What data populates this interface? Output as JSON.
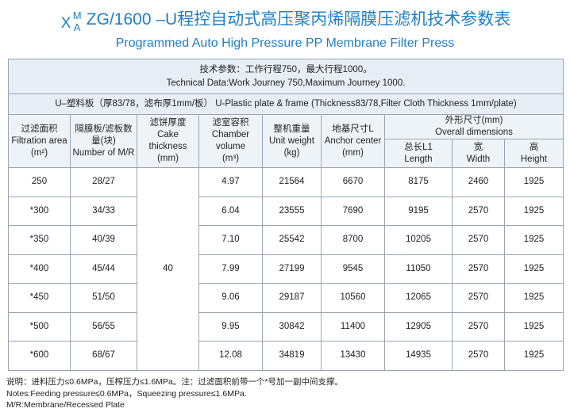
{
  "title": {
    "code_x": "X",
    "code_m": "M",
    "code_a": "A",
    "code_rest": "ZG/1600 –U程控自动式高压聚丙烯隔膜压滤机技术参数表",
    "subtitle": "Programmed Auto High Pressure PP Membrane Filter Press"
  },
  "technical_data": {
    "zh": "技术参数：工作行程750，最大行程1000。",
    "en": "Technical Data:Work Journey 750,Maximum Journey 1000."
  },
  "plate_info": "U–塑料板（厚83/78，滤布厚1mm/板） U-Plastic plate & frame (Thickness83/78,Filter Cloth Thickness 1mm/plate)",
  "headers": {
    "filtration_area": {
      "zh": "过滤面积",
      "en": "Filtration area",
      "unit": "(m²)"
    },
    "plates": {
      "zh": "隔膜板/滤板数量(块)",
      "en": "Number of M/R"
    },
    "cake": {
      "zh": "滤饼厚度",
      "en": "Cake thickness",
      "unit": "(mm)"
    },
    "chamber": {
      "zh": "滤室容积",
      "en": "Chamber volume",
      "unit": "(m³)"
    },
    "weight": {
      "zh": "整机重量",
      "en": "Unit weight",
      "unit": "(kg)"
    },
    "anchor": {
      "zh": "地基尺寸L",
      "en": "Anchor center",
      "unit": "(mm)"
    },
    "overall": {
      "zh": "外形尺寸(mm)",
      "en": "Overall dimensions"
    },
    "length": {
      "zh": "总长L1",
      "en": "Length"
    },
    "width": {
      "zh": "宽",
      "en": "Width"
    },
    "height": {
      "zh": "高",
      "en": "Height"
    }
  },
  "cake_thickness": "40",
  "rows": [
    {
      "area": "250",
      "plates": "28/27",
      "chamber": "4.97",
      "weight": "21564",
      "anchor": "6670",
      "length": "8175",
      "width": "2460",
      "height": "1925"
    },
    {
      "area": "*300",
      "plates": "34/33",
      "chamber": "6.04",
      "weight": "23555",
      "anchor": "7690",
      "length": "9195",
      "width": "2570",
      "height": "1925"
    },
    {
      "area": "*350",
      "plates": "40/39",
      "chamber": "7.10",
      "weight": "25542",
      "anchor": "8700",
      "length": "10205",
      "width": "2570",
      "height": "1925"
    },
    {
      "area": "*400",
      "plates": "45/44",
      "chamber": "7.99",
      "weight": "27199",
      "anchor": "9545",
      "length": "11050",
      "width": "2570",
      "height": "1925"
    },
    {
      "area": "*450",
      "plates": "51/50",
      "chamber": "9.06",
      "weight": "29187",
      "anchor": "10560",
      "length": "12065",
      "width": "2570",
      "height": "1925"
    },
    {
      "area": "*500",
      "plates": "56/55",
      "chamber": "9.95",
      "weight": "30842",
      "anchor": "11400",
      "length": "12905",
      "width": "2570",
      "height": "1925"
    },
    {
      "area": "*600",
      "plates": "68/67",
      "chamber": "12.08",
      "weight": "34819",
      "anchor": "13430",
      "length": "14935",
      "width": "2570",
      "height": "1925"
    }
  ],
  "notes": {
    "zh": "说明：进料压力≤0.6MPa，压榨压力≤1.6MPa。注：过滤面积前带一个*号加一副中间支撑。",
    "en": "Notes:Feeding pressure≤0.6MPa，Squeezing pressure≤1.6MPa.",
    "mr": "M/R:Membrane/Recessed Plate"
  }
}
